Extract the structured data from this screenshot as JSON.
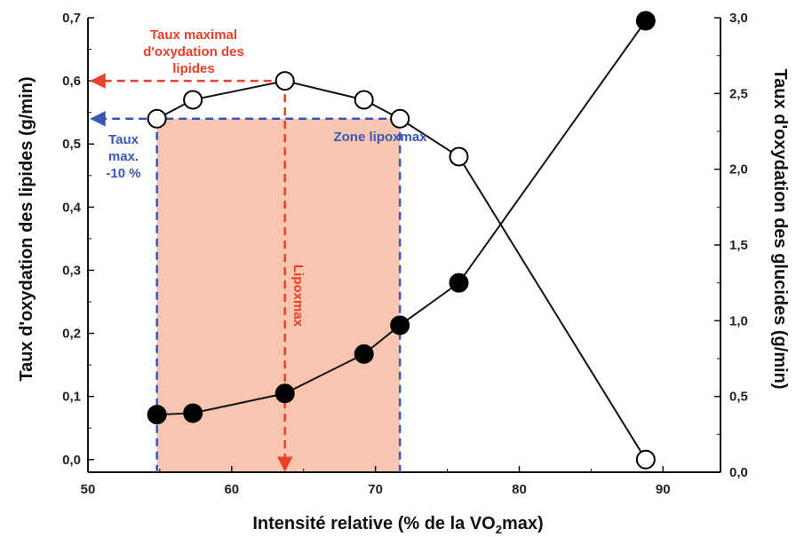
{
  "colors": {
    "zone_fill": "#f8c6b0",
    "red": "#e8402a",
    "blue": "#3a57b8",
    "ink": "#111111"
  },
  "chart_data": {
    "type": "line",
    "xlabel_main": "Intensité relative (% de la VO",
    "xlabel_sub": "2",
    "xlabel_end": "max)",
    "ylabel_left": "Taux d'oxydation des lipides (g/min)",
    "ylabel_right": "Taux d'oxydation des glucides (g/min)",
    "xlim": [
      50,
      94
    ],
    "ylim_left": [
      -0.02,
      0.7
    ],
    "ylim_right": [
      0,
      3.0
    ],
    "x_ticks": [
      50,
      60,
      70,
      80,
      90
    ],
    "y_left_ticks": [
      "0,0",
      "0,1",
      "0,2",
      "0,3",
      "0,4",
      "0,5",
      "0,6",
      "0,7"
    ],
    "y_right_ticks": [
      "0,0",
      "0,5",
      "1,0",
      "1,5",
      "2,0",
      "2,5",
      "3,0"
    ],
    "series": [
      {
        "axis": "left",
        "marker": "open-circle",
        "points": [
          {
            "x": 54.8,
            "y": 0.54
          },
          {
            "x": 57.3,
            "y": 0.57
          },
          {
            "x": 63.7,
            "y": 0.6
          },
          {
            "x": 69.2,
            "y": 0.57
          },
          {
            "x": 71.7,
            "y": 0.54
          },
          {
            "x": 75.8,
            "y": 0.48
          },
          {
            "x": 88.8,
            "y": 0.0
          }
        ]
      },
      {
        "axis": "right",
        "marker": "filled-circle",
        "points": [
          {
            "x": 54.8,
            "y": 0.38
          },
          {
            "x": 57.3,
            "y": 0.39
          },
          {
            "x": 63.7,
            "y": 0.52
          },
          {
            "x": 69.2,
            "y": 0.78
          },
          {
            "x": 71.7,
            "y": 0.97
          },
          {
            "x": 75.8,
            "y": 1.25
          },
          {
            "x": 88.8,
            "y": 2.98
          }
        ]
      }
    ],
    "annotations": {
      "max_rate_line1": "Taux maximal",
      "max_rate_line2": "d'oxydation des",
      "max_rate_line3": "lipides",
      "zone_label": "Zone lipoxmax",
      "taux_line1": "Taux",
      "taux_line2": "max.",
      "taux_line3": "-10 %",
      "lipoxmax": "Lipoxmax"
    },
    "zone": {
      "x_start": 54.8,
      "x_end": 71.7,
      "y_top": 0.54
    },
    "max_point": {
      "x": 63.7,
      "y": 0.6
    },
    "grid": false
  }
}
